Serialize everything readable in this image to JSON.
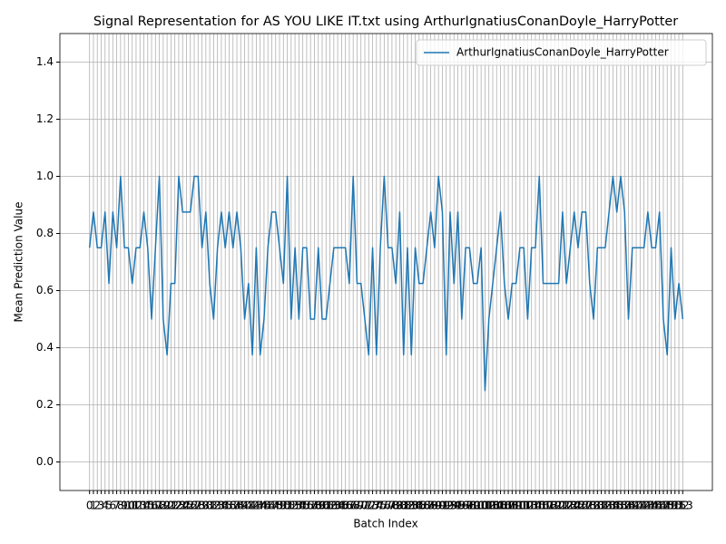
{
  "chart_data": {
    "type": "line",
    "title": "Signal Representation for AS YOU LIKE IT.txt using ArthurIgnatiusConanDoyle_HarryPotter",
    "xlabel": "Batch Index",
    "ylabel": "Mean Prediction Value",
    "x": [
      0,
      1,
      2,
      3,
      4,
      5,
      6,
      7,
      8,
      9,
      10,
      11,
      12,
      13,
      14,
      15,
      16,
      17,
      18,
      19,
      20,
      21,
      22,
      23,
      24,
      25,
      26,
      27,
      28,
      29,
      30,
      31,
      32,
      33,
      34,
      35,
      36,
      37,
      38,
      39,
      40,
      41,
      42,
      43,
      44,
      45,
      46,
      47,
      48,
      49,
      50,
      51,
      52,
      53,
      54,
      55,
      56,
      57,
      58,
      59,
      60,
      61,
      62,
      63,
      64,
      65,
      66,
      67,
      68,
      69,
      70,
      71,
      72,
      73,
      74,
      75,
      76,
      77,
      78,
      79,
      80,
      81,
      82,
      83,
      84,
      85,
      86,
      87,
      88,
      89,
      90,
      91,
      92,
      93,
      94,
      95,
      96,
      97,
      98,
      99,
      100,
      101,
      102,
      103,
      104,
      105,
      106,
      107,
      108,
      109,
      110,
      111,
      112,
      113,
      114,
      115,
      116,
      117,
      118,
      119,
      120,
      121,
      122,
      123,
      124,
      125,
      126,
      127,
      128,
      129,
      130,
      131,
      132,
      133,
      134,
      135,
      136,
      137,
      138,
      139,
      140,
      141,
      142,
      143,
      144,
      145,
      146,
      147,
      148,
      149,
      150,
      151,
      152,
      153
    ],
    "series": [
      {
        "name": "ArthurIgnatiusConanDoyle_HarryPotter",
        "color": "#1f77b4",
        "values": [
          0.75,
          0.875,
          0.75,
          0.75,
          0.875,
          0.625,
          0.875,
          0.75,
          1,
          0.75,
          0.75,
          0.625,
          0.75,
          0.75,
          0.875,
          0.75,
          0.5,
          0.75,
          1,
          0.5,
          0.375,
          0.625,
          0.625,
          1,
          0.875,
          0.875,
          0.875,
          1,
          1,
          0.75,
          0.875,
          0.625,
          0.5,
          0.75,
          0.875,
          0.75,
          0.875,
          0.75,
          0.875,
          0.75,
          0.5,
          0.625,
          0.375,
          0.75,
          0.375,
          0.5,
          0.75,
          0.875,
          0.875,
          0.75,
          0.625,
          1,
          0.5,
          0.75,
          0.5,
          0.75,
          0.75,
          0.5,
          0.5,
          0.75,
          0.5,
          0.5,
          0.625,
          0.75,
          0.75,
          0.75,
          0.75,
          0.625,
          1,
          0.625,
          0.625,
          0.5,
          0.375,
          0.75,
          0.375,
          0.75,
          1,
          0.75,
          0.75,
          0.625,
          0.875,
          0.375,
          0.75,
          0.375,
          0.75,
          0.625,
          0.625,
          0.75,
          0.875,
          0.75,
          1,
          0.875,
          0.375,
          0.875,
          0.625,
          0.875,
          0.5,
          0.75,
          0.75,
          0.625,
          0.625,
          0.75,
          0.25,
          0.5,
          0.625,
          0.75,
          0.875,
          0.625,
          0.5,
          0.625,
          0.625,
          0.75,
          0.75,
          0.5,
          0.75,
          0.75,
          1,
          0.625,
          0.625,
          0.625,
          0.625,
          0.625,
          0.875,
          0.625,
          0.75,
          0.875,
          0.75,
          0.875,
          0.875,
          0.625,
          0.5,
          0.75,
          0.75,
          0.75,
          0.875,
          1,
          0.875,
          1,
          0.875,
          0.5,
          0.75,
          0.75,
          0.75,
          0.75,
          0.875,
          0.75,
          0.75,
          0.875,
          0.5,
          0.375,
          0.75,
          0.5,
          0.625,
          0.5
        ]
      }
    ],
    "xlim": [
      -7.65,
      160.65
    ],
    "xticks": [
      0,
      1,
      2,
      3,
      4,
      5,
      6,
      7,
      8,
      9,
      10,
      11,
      12,
      13,
      14,
      15,
      16,
      17,
      18,
      19,
      20,
      21,
      22,
      23,
      24,
      25,
      26,
      27,
      28,
      29,
      30,
      31,
      32,
      33,
      34,
      35,
      36,
      37,
      38,
      39,
      40,
      41,
      42,
      43,
      44,
      45,
      46,
      47,
      48,
      49,
      50,
      51,
      52,
      53,
      54,
      55,
      56,
      57,
      58,
      59,
      60,
      61,
      62,
      63,
      64,
      65,
      66,
      67,
      68,
      69,
      70,
      71,
      72,
      73,
      74,
      75,
      76,
      77,
      78,
      79,
      80,
      81,
      82,
      83,
      84,
      85,
      86,
      87,
      88,
      89,
      90,
      91,
      92,
      93,
      94,
      95,
      96,
      97,
      98,
      99,
      100,
      101,
      102,
      103,
      104,
      105,
      106,
      107,
      108,
      109,
      110,
      111,
      112,
      113,
      114,
      115,
      116,
      117,
      118,
      119,
      120,
      121,
      122,
      123,
      124,
      125,
      126,
      127,
      128,
      129,
      130,
      131,
      132,
      133,
      134,
      135,
      136,
      137,
      138,
      139,
      140,
      141,
      142,
      143,
      144,
      145,
      146,
      147,
      148,
      149,
      150,
      151,
      152,
      153
    ],
    "ylim": [
      -0.1,
      1.5
    ],
    "yticks": [
      {
        "value": 0,
        "label": "0.0"
      },
      0.2,
      0.4,
      0.6,
      0.8,
      {
        "value": 1,
        "label": "1.0"
      },
      1.2,
      1.4
    ],
    "grid": true,
    "legend": "upper right"
  }
}
